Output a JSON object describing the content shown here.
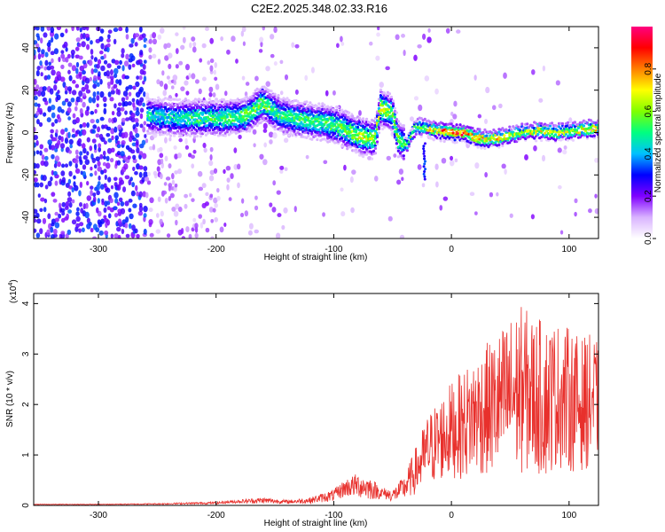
{
  "title": "C2E2.2025.348.02.33.R16",
  "chart_data": [
    {
      "type": "heatmap",
      "xlabel": "Height of straight line (km)",
      "ylabel": "Frequency (Hz)",
      "xlim": [
        -355,
        125
      ],
      "ylim": [
        -50,
        50
      ],
      "x_ticks": [
        -300,
        -200,
        -100,
        0,
        100
      ],
      "y_ticks": [
        -40,
        -20,
        0,
        20,
        40
      ],
      "colorbar": {
        "label": "Normalized spectral amplitude",
        "range": [
          0,
          1
        ],
        "ticks": [
          "0.0",
          "0.2",
          "0.4",
          "0.6",
          "0.8"
        ],
        "colors": [
          "#ffffff",
          "#d9b3ff",
          "#8000ff",
          "#0000ff",
          "#00c0ff",
          "#00ff80",
          "#80ff00",
          "#ffff00",
          "#ff8000",
          "#ff0000",
          "#ff0080"
        ]
      },
      "ridge": [
        {
          "x": -255,
          "y": 8,
          "amp": 0.5
        },
        {
          "x": -235,
          "y": 7,
          "amp": 0.5
        },
        {
          "x": -215,
          "y": 7,
          "amp": 0.55
        },
        {
          "x": -195,
          "y": 7,
          "amp": 0.55
        },
        {
          "x": -175,
          "y": 8,
          "amp": 0.6
        },
        {
          "x": -160,
          "y": 14,
          "amp": 0.6
        },
        {
          "x": -145,
          "y": 8,
          "amp": 0.55
        },
        {
          "x": -125,
          "y": 6,
          "amp": 0.55
        },
        {
          "x": -110,
          "y": 5,
          "amp": 0.55
        },
        {
          "x": -95,
          "y": 3,
          "amp": 0.6
        },
        {
          "x": -85,
          "y": 0,
          "amp": 0.65
        },
        {
          "x": -75,
          "y": -2,
          "amp": 0.7
        },
        {
          "x": -65,
          "y": -3,
          "amp": 0.65
        },
        {
          "x": -60,
          "y": 12,
          "amp": 0.7
        },
        {
          "x": -50,
          "y": 9,
          "amp": 0.65
        },
        {
          "x": -45,
          "y": -3,
          "amp": 0.6
        },
        {
          "x": -38,
          "y": -6,
          "amp": 0.55
        },
        {
          "x": -30,
          "y": 3,
          "amp": 0.6
        },
        {
          "x": -20,
          "y": 2,
          "amp": 0.7
        },
        {
          "x": -10,
          "y": 1,
          "amp": 0.9
        },
        {
          "x": 0,
          "y": 0,
          "amp": 0.95
        },
        {
          "x": 10,
          "y": 0,
          "amp": 0.9
        },
        {
          "x": 20,
          "y": -2,
          "amp": 0.85
        },
        {
          "x": 30,
          "y": -3,
          "amp": 0.8
        },
        {
          "x": 45,
          "y": -2,
          "amp": 0.75
        },
        {
          "x": 60,
          "y": 0,
          "amp": 0.7
        },
        {
          "x": 75,
          "y": 1,
          "amp": 0.75
        },
        {
          "x": 90,
          "y": 0,
          "amp": 0.7
        },
        {
          "x": 105,
          "y": 1,
          "amp": 0.7
        },
        {
          "x": 120,
          "y": 2,
          "amp": 0.75
        }
      ]
    },
    {
      "type": "line",
      "xlabel": "Height of straight line (km)",
      "ylabel": "SNR (10 * v/v)",
      "y_multiplier": "(x10",
      "y_multiplier_exp": "4",
      "xlim": [
        -355,
        125
      ],
      "ylim": [
        0,
        4.2
      ],
      "x_ticks": [
        -300,
        -200,
        -100,
        0,
        100
      ],
      "y_ticks": [
        0,
        1,
        2,
        3,
        4
      ],
      "series": [
        {
          "color": "#e8302c",
          "x": [
            -355,
            -300,
            -250,
            -200,
            -180,
            -160,
            -140,
            -120,
            -100,
            -90,
            -80,
            -70,
            -60,
            -50,
            -40,
            -30,
            -20,
            -10,
            0,
            10,
            20,
            30,
            40,
            50,
            60,
            70,
            80,
            90,
            100,
            110,
            120,
            125
          ],
          "y": [
            0.02,
            0.02,
            0.03,
            0.05,
            0.08,
            0.1,
            0.07,
            0.1,
            0.2,
            0.35,
            0.4,
            0.35,
            0.25,
            0.2,
            0.35,
            0.7,
            1.1,
            1.3,
            1.5,
            1.6,
            1.8,
            1.9,
            2.0,
            2.2,
            2.3,
            2.2,
            2.1,
            2.2,
            2.1,
            2.0,
            2.1,
            2.0
          ],
          "spread": [
            0.005,
            0.005,
            0.01,
            0.02,
            0.03,
            0.05,
            0.03,
            0.05,
            0.1,
            0.15,
            0.2,
            0.2,
            0.1,
            0.1,
            0.2,
            0.4,
            0.6,
            0.7,
            0.8,
            0.9,
            1.0,
            1.1,
            1.2,
            1.3,
            1.4,
            1.3,
            1.3,
            1.2,
            1.2,
            1.1,
            1.1,
            1.0
          ]
        }
      ]
    }
  ]
}
